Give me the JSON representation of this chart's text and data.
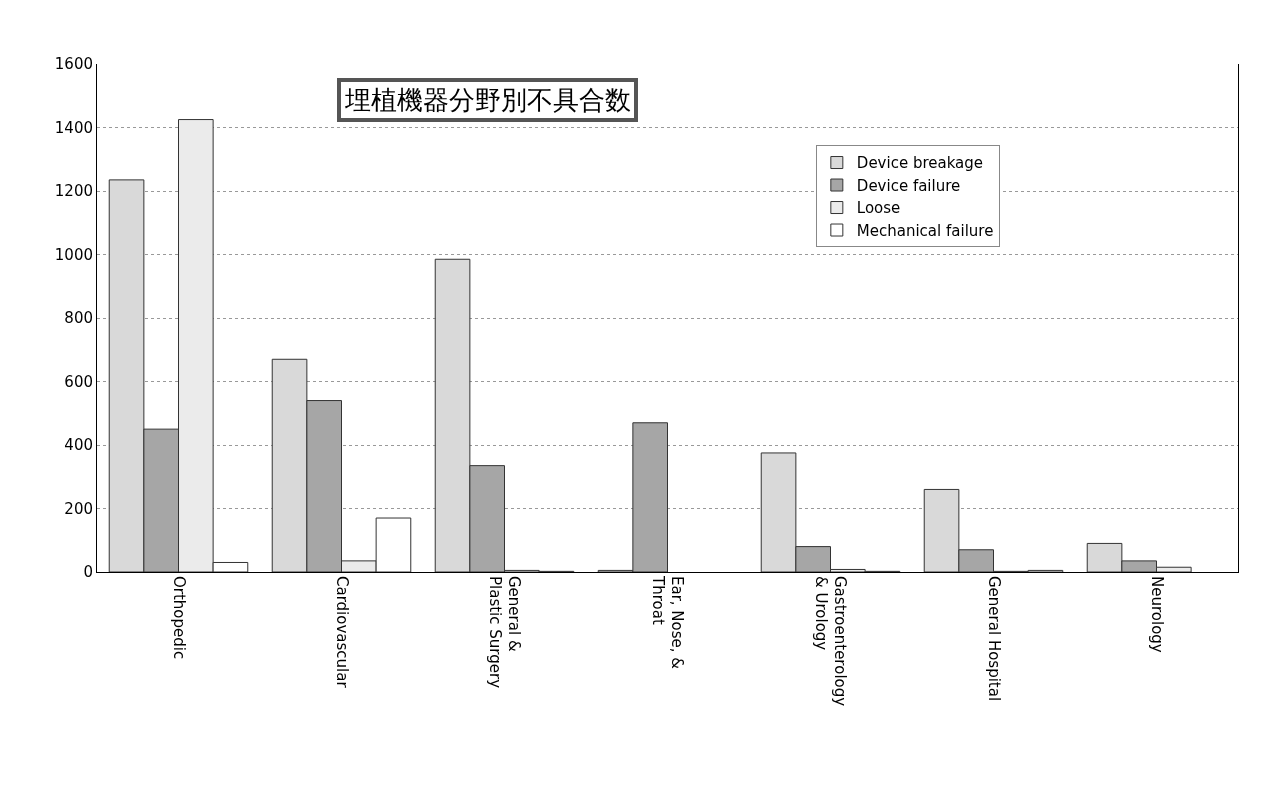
{
  "chart_data": {
    "type": "bar",
    "title": "埋植機器分野別不具合数",
    "categories": [
      "Orthopedic",
      "Cardiovascular",
      "General &\nPlastic Surgery",
      "Ear, Nose, &\nThroat",
      "Gastroenterology\n& Urology",
      "General Hospital",
      "Neurology"
    ],
    "series": [
      {
        "name": "Device breakage",
        "color": "#d9d9d9",
        "values": [
          1235,
          670,
          985,
          5,
          375,
          260,
          90
        ]
      },
      {
        "name": "Device failure",
        "color": "#a6a6a6",
        "values": [
          450,
          540,
          335,
          470,
          80,
          70,
          35
        ]
      },
      {
        "name": "Loose",
        "color": "#ebebeb",
        "values": [
          1425,
          35,
          5,
          null,
          8,
          2,
          15
        ]
      },
      {
        "name": "Mechanical failure",
        "color": "#ffffff",
        "values": [
          30,
          170,
          2,
          null,
          2,
          5,
          null
        ]
      }
    ],
    "ylim": [
      0,
      1600
    ],
    "yticks": [
      0,
      200,
      400,
      600,
      800,
      1000,
      1200,
      1400,
      1600
    ],
    "grid": "y",
    "legend": "top right"
  }
}
